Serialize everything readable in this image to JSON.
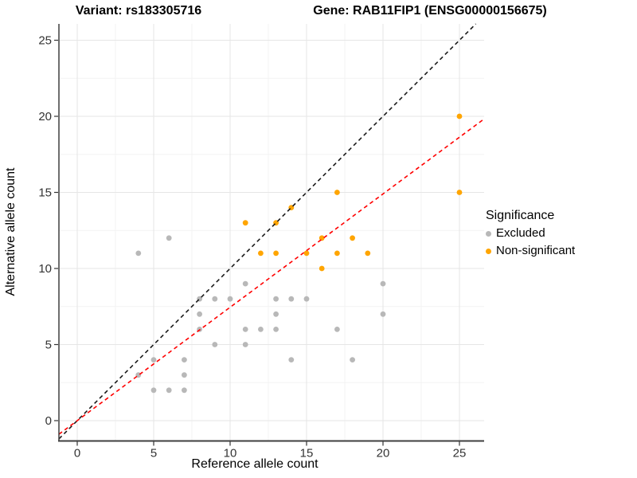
{
  "titles": {
    "variant": "Variant: rs183305716",
    "gene": "Gene: RAB11FIP1 (ENSG00000156675)"
  },
  "legend": {
    "title": "Significance",
    "items": [
      {
        "label": "Excluded",
        "color": "#b8b8b8"
      },
      {
        "label": "Non-significant",
        "color": "#ffa500"
      }
    ]
  },
  "chart_data": {
    "type": "scatter",
    "xlabel": "Reference allele count",
    "ylabel": "Alternative allele count",
    "x_ticks": [
      0,
      5,
      10,
      15,
      20,
      25
    ],
    "y_ticks": [
      0,
      5,
      10,
      15,
      20,
      25
    ],
    "xlim": [
      -1.2,
      26.6
    ],
    "ylim": [
      -1.3,
      26.1
    ],
    "grid": "major+minor",
    "legend_position": "right",
    "series": [
      {
        "name": "Excluded",
        "color": "#b8b8b8",
        "points": [
          [
            4,
            3
          ],
          [
            4,
            11
          ],
          [
            5,
            2
          ],
          [
            5,
            4
          ],
          [
            6,
            2
          ],
          [
            6,
            12
          ],
          [
            7,
            2
          ],
          [
            7,
            3
          ],
          [
            7,
            4
          ],
          [
            8,
            6
          ],
          [
            8,
            7
          ],
          [
            8,
            8
          ],
          [
            9,
            5
          ],
          [
            9,
            8
          ],
          [
            10,
            8
          ],
          [
            11,
            5
          ],
          [
            11,
            6
          ],
          [
            11,
            9
          ],
          [
            12,
            6
          ],
          [
            13,
            6
          ],
          [
            13,
            7
          ],
          [
            13,
            8
          ],
          [
            14,
            4
          ],
          [
            14,
            8
          ],
          [
            15,
            8
          ],
          [
            17,
            6
          ],
          [
            18,
            4
          ],
          [
            20,
            7
          ],
          [
            20,
            9
          ]
        ]
      },
      {
        "name": "Non-significant",
        "color": "#ffa500",
        "points": [
          [
            11,
            13
          ],
          [
            12,
            11
          ],
          [
            13,
            11
          ],
          [
            13,
            13
          ],
          [
            14,
            14
          ],
          [
            15,
            11
          ],
          [
            16,
            10
          ],
          [
            16,
            12
          ],
          [
            17,
            11
          ],
          [
            17,
            15
          ],
          [
            18,
            12
          ],
          [
            19,
            11
          ],
          [
            25,
            15
          ],
          [
            25,
            20
          ]
        ]
      }
    ],
    "reference_lines": [
      {
        "name": "identity-line",
        "slope": 1,
        "intercept": 0,
        "color": "#1a1a1a",
        "style": "dashed"
      },
      {
        "name": "ratio-fit-line",
        "slope": 0.745,
        "intercept": 0,
        "color": "#ff0000",
        "style": "dashed"
      }
    ]
  }
}
